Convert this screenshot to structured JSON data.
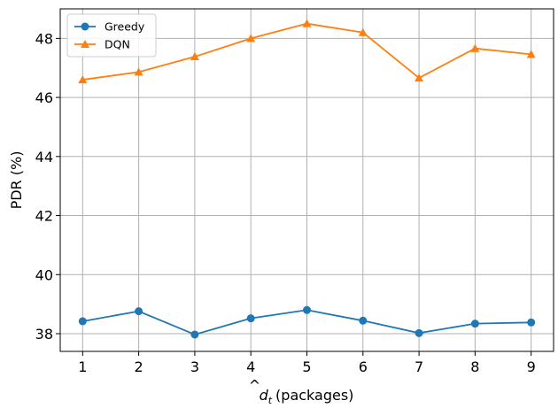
{
  "chart_data": {
    "type": "line",
    "title": "",
    "xlabel_symbol": "d",
    "xlabel_hat": "^",
    "xlabel_subscript": "t",
    "xlabel_units": "(packages)",
    "ylabel": "PDR (%)",
    "x": [
      1,
      2,
      3,
      4,
      5,
      6,
      7,
      8,
      9
    ],
    "xticks": [
      1,
      2,
      3,
      4,
      5,
      6,
      7,
      8,
      9
    ],
    "yticks": [
      38,
      40,
      42,
      44,
      46,
      48
    ],
    "xlim": [
      0.6,
      9.4
    ],
    "ylim": [
      37.4,
      49.0
    ],
    "grid": true,
    "legend_location": "upper-left",
    "series": [
      {
        "name": "Greedy",
        "color": "#1f77b4",
        "marker": "circle",
        "values": [
          38.42,
          38.76,
          37.97,
          38.52,
          38.8,
          38.44,
          38.02,
          38.34,
          38.38
        ]
      },
      {
        "name": "DQN",
        "color": "#ff7f0e",
        "marker": "triangle",
        "values": [
          46.6,
          46.86,
          47.38,
          48.0,
          48.5,
          48.2,
          46.66,
          47.66,
          47.46
        ]
      }
    ]
  }
}
